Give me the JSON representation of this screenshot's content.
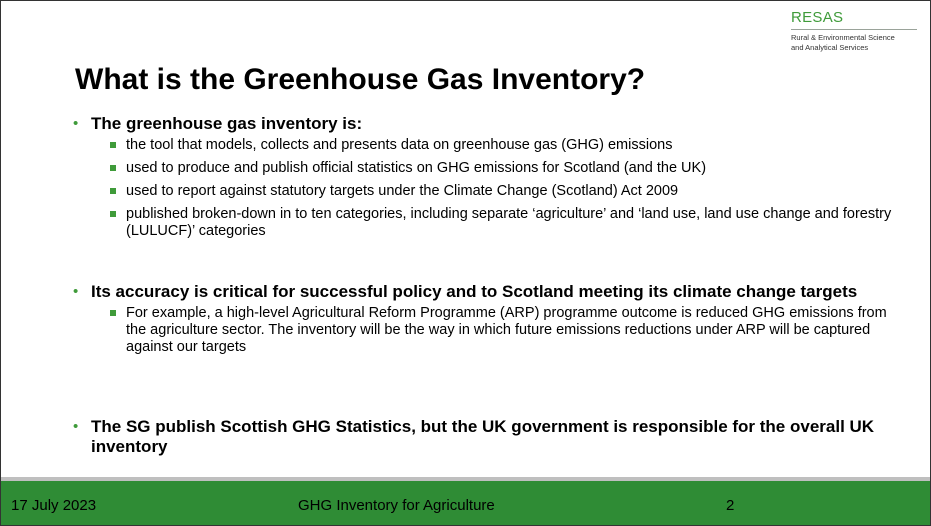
{
  "logo": {
    "name": "RESAS",
    "line1": "Rural & Environmental Science",
    "line2": "and Analytical Services"
  },
  "title": "What is the Greenhouse Gas Inventory?",
  "bullets": [
    {
      "text": "The greenhouse gas inventory is:",
      "sub": [
        "the tool that models, collects and presents data on greenhouse gas (GHG) emissions",
        "used to produce and publish official statistics on GHG emissions for Scotland (and the UK)",
        "used to report against statutory targets under the Climate Change (Scotland) Act 2009",
        "published broken-down in to ten categories, including separate ‘agriculture’ and ‘land use, land use change and forestry (LULUCF)’ categories"
      ]
    },
    {
      "text": "Its accuracy is critical for successful policy and to Scotland meeting its climate change targets",
      "sub": [
        "For example, a high-level Agricultural Reform Programme (ARP) programme outcome is reduced GHG emissions from the agriculture sector. The inventory will be the way in which future emissions reductions under ARP will be captured against our targets"
      ]
    },
    {
      "text": "The SG publish Scottish GHG Statistics, but the UK government is responsible for the overall UK inventory",
      "sub": []
    }
  ],
  "footer": {
    "date": "17 July 2023",
    "title": "GHG Inventory for Agriculture",
    "page": "2"
  },
  "colors": {
    "accent": "#3f9b3a",
    "footer_bg": "#2f8c35"
  }
}
